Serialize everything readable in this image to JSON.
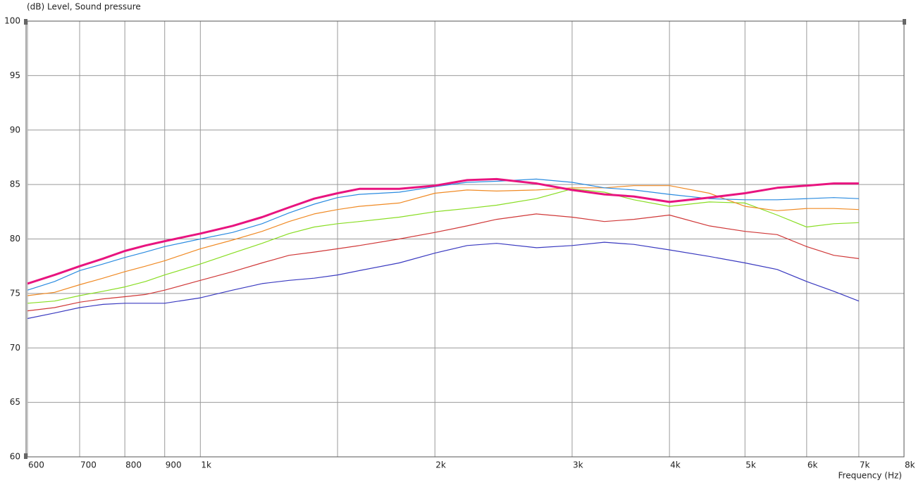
{
  "chart_data": {
    "type": "line",
    "title": "(dB)  Level, Sound pressure",
    "x_label": "Frequency  (Hz)",
    "log_x": true,
    "grid": true,
    "xlim": [
      600,
      8000
    ],
    "ylim": [
      60,
      100
    ],
    "xticks": [
      600,
      700,
      800,
      900,
      {
        "value": 1000,
        "label": "1k"
      },
      {
        "value": 2000,
        "label": "2k"
      },
      {
        "value": 3000,
        "label": "3k"
      },
      {
        "value": 4000,
        "label": "4k"
      },
      {
        "value": 5000,
        "label": "5k"
      },
      {
        "value": 6000,
        "label": "6k"
      },
      {
        "value": 7000,
        "label": "7k"
      },
      {
        "value": 8000,
        "label": "8k"
      }
    ],
    "xminor": [
      1500
    ],
    "yticks": [
      60,
      65,
      70,
      75,
      80,
      85,
      90,
      95,
      100
    ],
    "x": [
      600,
      650,
      700,
      750,
      800,
      850,
      900,
      1000,
      1100,
      1200,
      1300,
      1400,
      1500,
      1600,
      1800,
      2000,
      2200,
      2400,
      2700,
      3000,
      3300,
      3600,
      4000,
      4500,
      5000,
      5500,
      6000,
      6500,
      7000
    ],
    "series": [
      {
        "color": "#3a3ac0",
        "width": 1.2,
        "values": [
          72.7,
          73.2,
          73.7,
          74.0,
          74.1,
          74.1,
          74.1,
          74.6,
          75.3,
          75.9,
          76.2,
          76.4,
          76.7,
          77.1,
          77.8,
          78.7,
          79.4,
          79.6,
          79.2,
          79.4,
          79.7,
          79.5,
          79.0,
          78.4,
          77.8,
          77.2,
          76.1,
          75.2,
          74.3
        ]
      },
      {
        "color": "#d03838",
        "width": 1.2,
        "values": [
          73.4,
          73.7,
          74.2,
          74.5,
          74.7,
          74.9,
          75.3,
          76.2,
          77.0,
          77.8,
          78.5,
          78.8,
          79.1,
          79.4,
          80.0,
          80.6,
          81.2,
          81.8,
          82.3,
          82.0,
          81.6,
          81.8,
          82.2,
          81.2,
          80.7,
          80.4,
          79.3,
          78.5,
          78.2
        ]
      },
      {
        "color": "#88dd22",
        "width": 1.2,
        "values": [
          74.1,
          74.3,
          74.8,
          75.2,
          75.6,
          76.1,
          76.7,
          77.7,
          78.7,
          79.6,
          80.5,
          81.1,
          81.4,
          81.6,
          82.0,
          82.5,
          82.8,
          83.1,
          83.7,
          84.6,
          84.3,
          83.6,
          83.0,
          83.4,
          83.3,
          82.2,
          81.1,
          81.4,
          81.5
        ]
      },
      {
        "color": "#f08a24",
        "width": 1.2,
        "values": [
          74.8,
          75.1,
          75.8,
          76.4,
          77.0,
          77.5,
          78.0,
          79.1,
          79.9,
          80.7,
          81.6,
          82.3,
          82.7,
          83.0,
          83.3,
          84.2,
          84.5,
          84.4,
          84.5,
          84.7,
          84.7,
          84.9,
          84.9,
          84.2,
          83.0,
          82.6,
          82.8,
          82.8,
          82.7
        ]
      },
      {
        "color": "#2a8be0",
        "width": 1.2,
        "values": [
          75.3,
          76.1,
          77.1,
          77.7,
          78.3,
          78.8,
          79.3,
          80.0,
          80.6,
          81.4,
          82.4,
          83.2,
          83.8,
          84.1,
          84.3,
          84.8,
          85.2,
          85.3,
          85.5,
          85.2,
          84.7,
          84.5,
          84.1,
          83.7,
          83.6,
          83.6,
          83.7,
          83.8,
          83.7
        ]
      },
      {
        "color": "#e8147f",
        "width": 3,
        "values": [
          75.9,
          76.7,
          77.5,
          78.2,
          78.9,
          79.4,
          79.8,
          80.5,
          81.2,
          82.0,
          82.9,
          83.7,
          84.2,
          84.6,
          84.6,
          84.9,
          85.4,
          85.5,
          85.1,
          84.5,
          84.1,
          83.9,
          83.4,
          83.8,
          84.2,
          84.7,
          84.9,
          85.1,
          85.1
        ]
      }
    ]
  }
}
